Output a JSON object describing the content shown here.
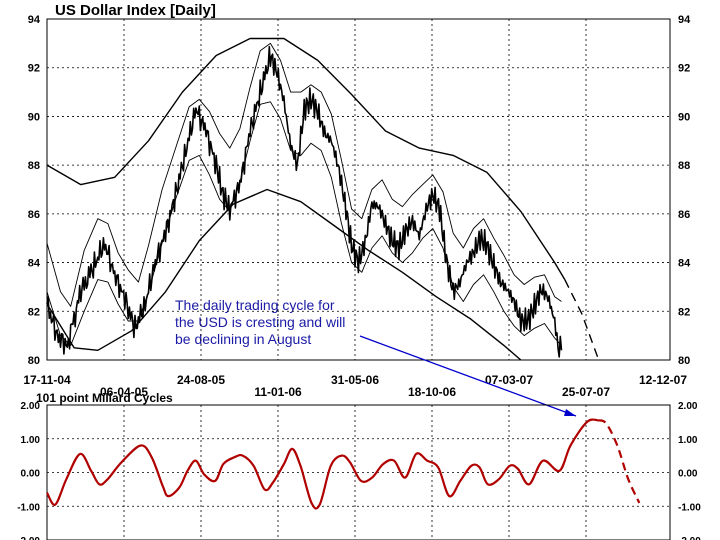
{
  "chart_data": [
    {
      "type": "line",
      "title": "US Dollar Index  [Daily]",
      "ylim": [
        80,
        94
      ],
      "yticks": [
        "80",
        "82",
        "84",
        "86",
        "88",
        "90",
        "92",
        "94"
      ],
      "x_tick_labels": [
        "17-11-04",
        "06-04-05",
        "24-08-05",
        "11-01-06",
        "31-05-06",
        "18-10-06",
        "07-03-07",
        "25-07-07",
        "12-12-07"
      ],
      "grid": true,
      "annotation": {
        "lines": [
          "The daily trading cycle for",
          "the USD is cresting and will",
          "be declining in August"
        ]
      },
      "series": [
        {
          "role": "price",
          "x": [
            "17-11-04",
            "06-04-05",
            "24-08-05",
            "11-01-06",
            "31-05-06",
            "18-10-06",
            "07-03-07",
            "25-07-07"
          ],
          "points": [
            [
              0,
              82.3
            ],
            [
              3,
              81.0
            ],
            [
              6,
              80.6
            ],
            [
              10,
              82.8
            ],
            [
              14,
              83.9
            ],
            [
              17,
              84.8
            ],
            [
              20,
              83.5
            ],
            [
              23,
              82.5
            ],
            [
              26,
              81.3
            ],
            [
              29,
              82.3
            ],
            [
              32,
              84.0
            ],
            [
              35,
              85.2
            ],
            [
              38,
              86.8
            ],
            [
              41,
              88.6
            ],
            [
              44,
              90.3
            ],
            [
              47,
              89.4
            ],
            [
              50,
              88.0
            ],
            [
              52,
              86.8
            ],
            [
              54,
              86.2
            ],
            [
              57,
              87.2
            ],
            [
              60,
              89.4
            ],
            [
              63,
              91.0
            ],
            [
              66,
              92.5
            ],
            [
              68,
              91.8
            ],
            [
              70,
              90.6
            ],
            [
              72,
              88.8
            ],
            [
              74,
              88.0
            ],
            [
              76,
              90.3
            ],
            [
              78,
              90.7
            ],
            [
              80,
              90.2
            ],
            [
              82,
              89.3
            ],
            [
              84,
              89.0
            ],
            [
              86,
              88.0
            ],
            [
              88,
              86.5
            ],
            [
              90,
              84.7
            ],
            [
              92,
              84.0
            ],
            [
              94,
              84.8
            ],
            [
              96,
              86.4
            ],
            [
              98,
              86.3
            ],
            [
              100,
              85.6
            ],
            [
              102,
              84.9
            ],
            [
              104,
              84.6
            ],
            [
              106,
              85.3
            ],
            [
              108,
              85.7
            ],
            [
              110,
              85.1
            ],
            [
              112,
              86.2
            ],
            [
              114,
              86.8
            ],
            [
              116,
              86.2
            ],
            [
              118,
              84.1
            ],
            [
              120,
              82.8
            ],
            [
              122,
              83.2
            ],
            [
              124,
              84.0
            ],
            [
              126,
              84.4
            ],
            [
              128,
              85.0
            ],
            [
              130,
              84.7
            ],
            [
              132,
              83.9
            ],
            [
              134,
              83.2
            ],
            [
              136,
              82.9
            ],
            [
              138,
              82.4
            ],
            [
              140,
              81.6
            ],
            [
              142,
              81.6
            ],
            [
              144,
              82.2
            ],
            [
              146,
              82.9
            ],
            [
              148,
              82.6
            ],
            [
              150,
              81.6
            ],
            [
              151,
              80.5
            ],
            [
              152,
              80.4
            ]
          ]
        },
        {
          "role": "outer-upper-envelope",
          "points": [
            [
              0,
              88.0
            ],
            [
              10,
              87.2
            ],
            [
              20,
              87.5
            ],
            [
              30,
              89.0
            ],
            [
              40,
              91.0
            ],
            [
              50,
              92.5
            ],
            [
              60,
              93.2
            ],
            [
              70,
              93.2
            ],
            [
              80,
              92.3
            ],
            [
              90,
              90.9
            ],
            [
              100,
              89.4
            ],
            [
              110,
              88.7
            ],
            [
              120,
              88.4
            ],
            [
              130,
              87.7
            ],
            [
              140,
              86.1
            ],
            [
              150,
              84.0
            ],
            [
              153,
              83.3
            ]
          ]
        },
        {
          "role": "outer-upper-envelope-projection",
          "points": [
            [
              153,
              83.3
            ],
            [
              158,
              81.9
            ],
            [
              163,
              80.0
            ]
          ]
        },
        {
          "role": "outer-lower-envelope",
          "points": [
            [
              0,
              82.3
            ],
            [
              8,
              80.5
            ],
            [
              15,
              80.4
            ],
            [
              25,
              81.2
            ],
            [
              35,
              82.8
            ],
            [
              45,
              84.9
            ],
            [
              55,
              86.4
            ],
            [
              65,
              87.0
            ],
            [
              75,
              86.5
            ],
            [
              85,
              85.5
            ],
            [
              95,
              84.5
            ],
            [
              105,
              83.6
            ],
            [
              115,
              82.6
            ],
            [
              125,
              81.7
            ],
            [
              135,
              80.6
            ],
            [
              140,
              80.0
            ]
          ]
        },
        {
          "role": "inner-upper-band",
          "points": [
            [
              0,
              84.8
            ],
            [
              4,
              82.8
            ],
            [
              7,
              82.2
            ],
            [
              11,
              84.5
            ],
            [
              15,
              85.8
            ],
            [
              18,
              85.6
            ],
            [
              21,
              84.4
            ],
            [
              24,
              83.7
            ],
            [
              27,
              83.2
            ],
            [
              30,
              84.7
            ],
            [
              34,
              87.0
            ],
            [
              38,
              88.7
            ],
            [
              42,
              90.4
            ],
            [
              45,
              90.7
            ],
            [
              48,
              90.2
            ],
            [
              51,
              89.3
            ],
            [
              54,
              88.7
            ],
            [
              57,
              89.5
            ],
            [
              60,
              91.2
            ],
            [
              63,
              92.7
            ],
            [
              66,
              93.0
            ],
            [
              69,
              92.3
            ],
            [
              72,
              91.0
            ],
            [
              75,
              91.0
            ],
            [
              78,
              91.3
            ],
            [
              81,
              91.0
            ],
            [
              84,
              90.1
            ],
            [
              87,
              88.2
            ],
            [
              90,
              86.2
            ],
            [
              93,
              85.8
            ],
            [
              96,
              87.0
            ],
            [
              99,
              87.4
            ],
            [
              102,
              86.6
            ],
            [
              105,
              86.3
            ],
            [
              108,
              86.8
            ],
            [
              111,
              87.2
            ],
            [
              114,
              87.6
            ],
            [
              117,
              86.9
            ],
            [
              120,
              85.2
            ],
            [
              123,
              84.6
            ],
            [
              126,
              85.4
            ],
            [
              129,
              85.8
            ],
            [
              132,
              85.0
            ],
            [
              135,
              84.3
            ],
            [
              138,
              83.5
            ],
            [
              141,
              83.1
            ],
            [
              144,
              83.4
            ],
            [
              147,
              83.5
            ],
            [
              150,
              82.6
            ],
            [
              152,
              82.4
            ]
          ]
        },
        {
          "role": "inner-lower-band",
          "points": [
            [
              0,
              82.8
            ],
            [
              4,
              81.0
            ],
            [
              7,
              80.6
            ],
            [
              11,
              82.0
            ],
            [
              15,
              83.3
            ],
            [
              18,
              83.2
            ],
            [
              21,
              82.3
            ],
            [
              24,
              81.6
            ],
            [
              27,
              81.6
            ],
            [
              30,
              82.8
            ],
            [
              34,
              84.8
            ],
            [
              38,
              86.6
            ],
            [
              42,
              88.2
            ],
            [
              45,
              88.4
            ],
            [
              48,
              87.6
            ],
            [
              51,
              86.6
            ],
            [
              54,
              86.1
            ],
            [
              57,
              87.3
            ],
            [
              60,
              89.0
            ],
            [
              63,
              90.5
            ],
            [
              66,
              90.6
            ],
            [
              69,
              89.9
            ],
            [
              72,
              88.6
            ],
            [
              75,
              88.4
            ],
            [
              78,
              88.9
            ],
            [
              81,
              88.6
            ],
            [
              84,
              87.5
            ],
            [
              87,
              85.6
            ],
            [
              90,
              84.0
            ],
            [
              93,
              83.6
            ],
            [
              96,
              84.6
            ],
            [
              99,
              85.1
            ],
            [
              102,
              84.4
            ],
            [
              105,
              84.0
            ],
            [
              108,
              84.4
            ],
            [
              111,
              85.0
            ],
            [
              114,
              85.4
            ],
            [
              117,
              84.6
            ],
            [
              120,
              83.0
            ],
            [
              123,
              82.4
            ],
            [
              126,
              83.1
            ],
            [
              129,
              83.5
            ],
            [
              132,
              82.8
            ],
            [
              135,
              82.0
            ],
            [
              138,
              81.4
            ],
            [
              141,
              81.0
            ],
            [
              144,
              81.3
            ],
            [
              147,
              81.5
            ],
            [
              150,
              80.9
            ],
            [
              152,
              80.6
            ]
          ]
        }
      ]
    },
    {
      "type": "line",
      "title": "101 point Millard Cycles",
      "ylim": [
        -2,
        2
      ],
      "yticks": [
        "2.00",
        "1.00",
        "0.00",
        "-1.00",
        "-2.00"
      ],
      "grid": true,
      "series": [
        {
          "role": "cycle",
          "points": [
            [
              0,
              -0.6
            ],
            [
              3,
              -0.95
            ],
            [
              7,
              -0.2
            ],
            [
              12,
              0.55
            ],
            [
              16,
              0.05
            ],
            [
              19,
              -0.35
            ],
            [
              22,
              -0.2
            ],
            [
              27,
              0.3
            ],
            [
              34,
              0.8
            ],
            [
              38,
              0.45
            ],
            [
              42,
              -0.4
            ],
            [
              44,
              -0.7
            ],
            [
              48,
              -0.45
            ],
            [
              51,
              0.05
            ],
            [
              54,
              0.35
            ],
            [
              57,
              -0.05
            ],
            [
              61,
              -0.25
            ],
            [
              64,
              0.25
            ],
            [
              68,
              0.45
            ],
            [
              71,
              0.5
            ],
            [
              75,
              0.2
            ],
            [
              79,
              -0.5
            ],
            [
              82,
              -0.3
            ],
            [
              86,
              0.25
            ],
            [
              89,
              0.7
            ],
            [
              92,
              0.2
            ],
            [
              96,
              -0.9
            ],
            [
              99,
              -0.95
            ],
            [
              103,
              0.2
            ],
            [
              107,
              0.5
            ],
            [
              110,
              0.3
            ],
            [
              114,
              -0.25
            ],
            [
              118,
              -0.15
            ],
            [
              122,
              0.25
            ],
            [
              126,
              0.35
            ],
            [
              130,
              -0.15
            ],
            [
              134,
              0.55
            ],
            [
              138,
              0.35
            ],
            [
              142,
              0.15
            ],
            [
              146,
              -0.7
            ],
            [
              150,
              -0.25
            ],
            [
              154,
              0.2
            ],
            [
              157,
              0.15
            ],
            [
              160,
              -0.35
            ],
            [
              164,
              -0.2
            ],
            [
              168,
              0.2
            ],
            [
              171,
              0.1
            ],
            [
              175,
              -0.35
            ],
            [
              180,
              0.35
            ],
            [
              186,
              0.05
            ],
            [
              190,
              0.8
            ],
            [
              196,
              1.5
            ],
            [
              200,
              1.55
            ]
          ]
        },
        {
          "role": "cycle-projection",
          "points": [
            [
              200,
              1.55
            ],
            [
              203,
              1.45
            ],
            [
              207,
              0.8
            ],
            [
              211,
              -0.2
            ],
            [
              215,
              -0.9
            ]
          ]
        }
      ]
    }
  ],
  "colors": {
    "price": "#000000",
    "envelope": "#000000",
    "grid": "#000000",
    "annotation_text": "#1a1aa6",
    "annotation_arrow": "#0000cc",
    "cycle": "#b00000"
  }
}
